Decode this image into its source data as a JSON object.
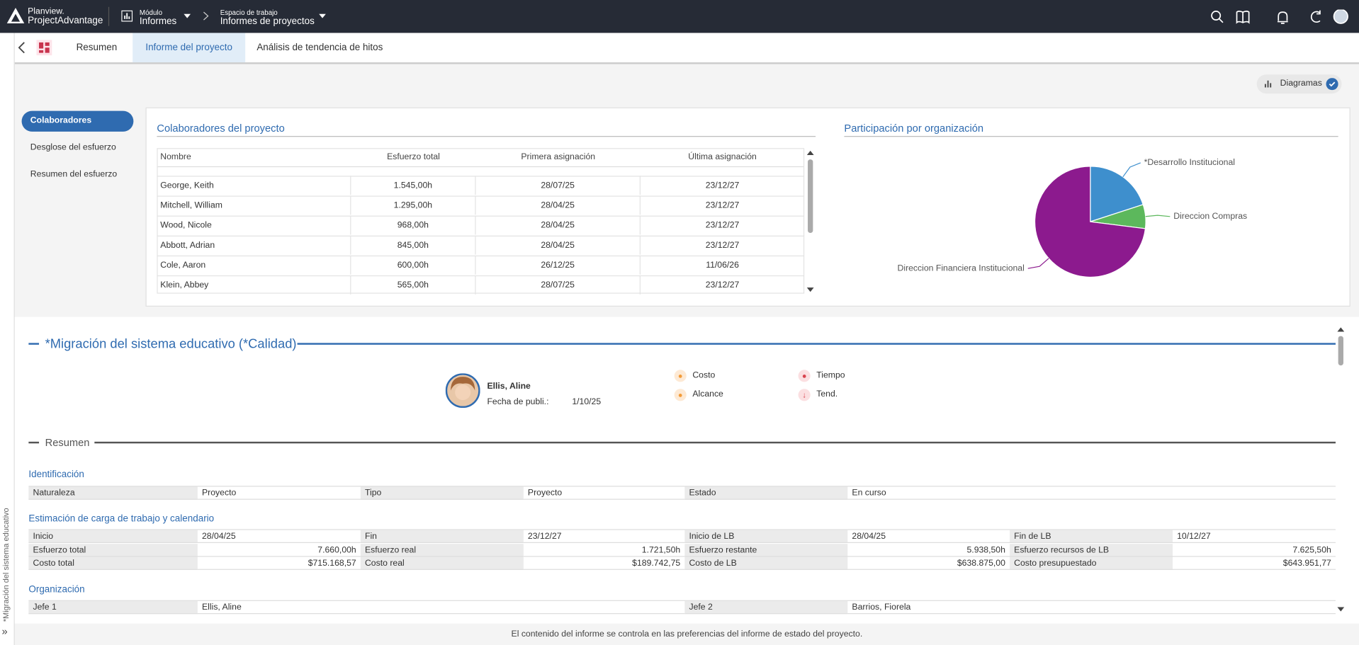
{
  "header": {
    "brand": [
      "Planview.",
      "ProjectAdvantage"
    ],
    "module_label": "Módulo",
    "module": "Informes",
    "workspace_label": "Espacio de trabajo",
    "workspace": "Informes de proyectos"
  },
  "tabs": [
    "Resumen",
    "Informe del proyecto",
    "Análisis de tendencia de hitos"
  ],
  "toolbar": {
    "charts_button": "Diagramas"
  },
  "side_nav": [
    "Colaboradores",
    "Desglose del esfuerzo",
    "Resumen del esfuerzo"
  ],
  "collaborators": {
    "title": "Colaboradores del proyecto",
    "columns": [
      "Nombre",
      "Esfuerzo total",
      "Primera asignación",
      "Última asignación"
    ],
    "rows": [
      [
        "George, Keith",
        "1.545,00h",
        "28/07/25",
        "23/12/27"
      ],
      [
        "Mitchell, William",
        "1.295,00h",
        "28/04/25",
        "23/12/27"
      ],
      [
        "Wood, Nicole",
        "968,00h",
        "28/04/25",
        "23/12/27"
      ],
      [
        "Abbott, Adrian",
        "845,00h",
        "28/04/25",
        "23/12/27"
      ],
      [
        "Cole, Aaron",
        "600,00h",
        "26/12/25",
        "11/06/26"
      ],
      [
        "Klein, Abbey",
        "565,00h",
        "28/07/25",
        "23/12/27"
      ]
    ]
  },
  "participation_chart": {
    "type": "pie",
    "title": "Participación por organización",
    "categories": [
      "*Desarrollo Institucional",
      "Direccion Compras",
      "Direccion Financiera Institucional"
    ],
    "values": [
      20,
      7,
      73
    ],
    "colors": [
      "#3e8fcd",
      "#5cb85c",
      "#8c1a8e"
    ]
  },
  "project": {
    "title": "*Migración del sistema educativo (*Calidad)",
    "side_label": "*Migración del sistema educativo",
    "manager": "Ellis, Aline",
    "published_label": "Fecha de publi.:",
    "published": "1/10/25",
    "indicators": [
      "Costo",
      "Alcance",
      "Tiempo",
      "Tend."
    ]
  },
  "summary": {
    "title": "Resumen",
    "identification": {
      "title": "Identificación",
      "rows": [
        [
          "Naturaleza",
          "Proyecto",
          "Tipo",
          "Proyecto",
          "Estado",
          "En curso"
        ]
      ]
    },
    "estimate": {
      "title": "Estimación de carga de trabajo y calendario",
      "rows": [
        [
          "Inicio",
          "28/04/25",
          "Fin",
          "23/12/27",
          "Inicio de LB",
          "28/04/25",
          "Fin de LB",
          "10/12/27"
        ],
        [
          "Esfuerzo total",
          "7.660,00h",
          "Esfuerzo real",
          "1.721,50h",
          "Esfuerzo restante",
          "5.938,50h",
          "Esfuerzo recursos de LB",
          "7.625,50h"
        ],
        [
          "Costo total",
          "$715.168,57",
          "Costo real",
          "$189.742,75",
          "Costo de LB",
          "$638.875,00",
          "Costo presupuestado",
          "$643.951,77"
        ]
      ]
    },
    "organization": {
      "title": "Organización",
      "items": [
        [
          "Jefe 1",
          "Ellis, Aline"
        ],
        [
          "Jefe 2",
          "Barrios, Fiorela"
        ]
      ]
    }
  },
  "footer": "El contenido del informe se controla en las preferencias del informe de estado del proyecto."
}
